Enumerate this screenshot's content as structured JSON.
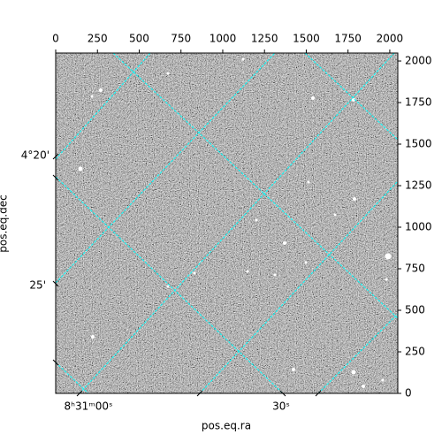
{
  "chart_data": {
    "type": "image",
    "xlabel": "pos.eq.ra",
    "ylabel": "pos.eq.dec",
    "xlim": [
      0,
      2048
    ],
    "ylim": [
      0,
      2048
    ],
    "xticks": [
      0,
      250,
      500,
      750,
      1000,
      1250,
      1500,
      1750,
      2000
    ],
    "yticks": [
      0,
      250,
      500,
      750,
      1000,
      1250,
      1500,
      1750,
      2000
    ],
    "ra_tick_labels": [
      "8ʰ31ᵐ00ˢ",
      "30ˢ"
    ],
    "dec_tick_labels": [
      "4°20'",
      "25'"
    ],
    "grid": true,
    "grid_color": "#00ffff"
  }
}
